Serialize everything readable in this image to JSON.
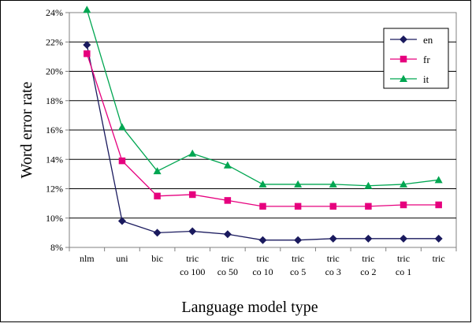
{
  "chart_data": {
    "type": "line",
    "title": "",
    "xlabel": "Language model type",
    "ylabel": "Word error rate",
    "categories": [
      [
        "nlm"
      ],
      [
        "uni"
      ],
      [
        "bic"
      ],
      [
        "tric",
        "co 100"
      ],
      [
        "tric",
        "co 50"
      ],
      [
        "tric",
        "co 10"
      ],
      [
        "tric",
        "co 5"
      ],
      [
        "tric",
        "co 3"
      ],
      [
        "tric",
        "co 2"
      ],
      [
        "tric",
        "co 1"
      ],
      [
        "tric"
      ]
    ],
    "ylim": [
      8,
      24
    ],
    "yticks": [
      8,
      10,
      12,
      14,
      16,
      18,
      20,
      22,
      24
    ],
    "ytick_suffix": "%",
    "grid": "horizontal",
    "legend_position": "top-right",
    "series": [
      {
        "name": "en",
        "color": "#1a1a5e",
        "marker": "diamond",
        "values": [
          21.8,
          9.8,
          9.0,
          9.1,
          8.9,
          8.5,
          8.5,
          8.6,
          8.6,
          8.6,
          8.6
        ]
      },
      {
        "name": "fr",
        "color": "#e6007e",
        "marker": "square",
        "values": [
          21.2,
          13.9,
          11.5,
          11.6,
          11.2,
          10.8,
          10.8,
          10.8,
          10.8,
          10.9,
          10.9
        ]
      },
      {
        "name": "it",
        "color": "#00a651",
        "marker": "triangle",
        "values": [
          24.2,
          16.2,
          13.2,
          14.4,
          13.6,
          12.3,
          12.3,
          12.3,
          12.2,
          12.3,
          12.6
        ]
      }
    ]
  }
}
